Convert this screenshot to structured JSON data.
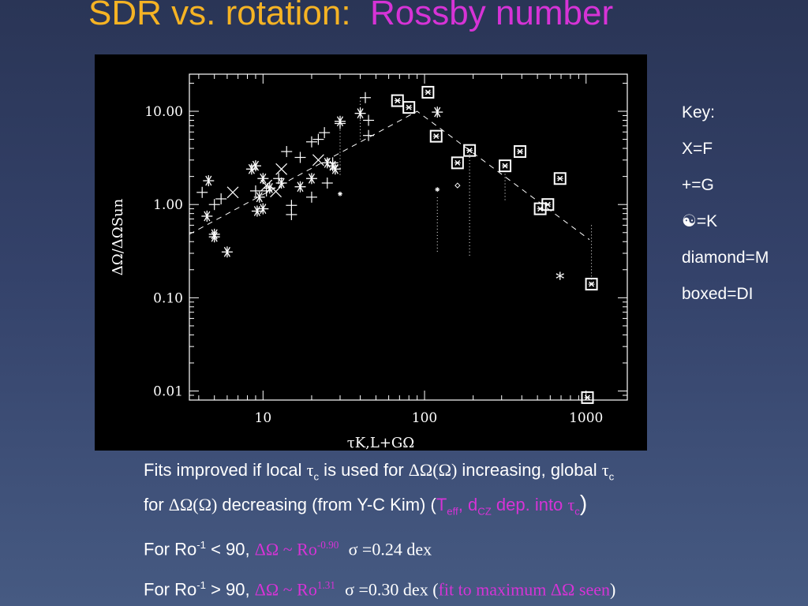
{
  "title": {
    "part1": "SDR vs. rotation:",
    "part2": "Rossby number"
  },
  "key": {
    "heading": "Key:",
    "items": [
      "X=F",
      "+=G",
      "☯=K",
      "diamond=M",
      "boxed=DI"
    ]
  },
  "notes": {
    "line1_a": "Fits improved if local ",
    "tau": "τ",
    "sub_c": "c",
    "line1_b": " is used for ",
    "domega": "ΔΩ(Ω)",
    "line1_c": " increasing, global ",
    "line2_a": "for ",
    "line2_b": " decreasing (from Y-C Kim) (",
    "teff": "T",
    "teff_sub": "eff",
    "dcz": ", d",
    "dcz_sub": "CZ",
    "dep": " dep. into ",
    "close": ")",
    "ro_low_a": "For Ro",
    "ro_sup": "-1",
    "ro_low_b": " < 90, ",
    "fit_low": "ΔΩ ~ Ro",
    "fit_low_exp": "-0.90",
    "sigma_low": "σ =0.24 dex",
    "ro_high_b": " > 90, ",
    "fit_high_exp": "1.31",
    "sigma_high": "σ =0.30 dex (",
    "fit_max": "fit to maximum ΔΩ seen",
    "paren_close": ")"
  },
  "colors": {
    "title1": "#f5b324",
    "title2": "#d633d6",
    "accent": "#d633d6"
  },
  "chart_data": {
    "type": "scatter",
    "xlabel": "τK,L+GΩ",
    "ylabel": "ΔΩ/ΔΩSun",
    "x_scale": "log",
    "y_scale": "log",
    "xlim": [
      3.5,
      1800
    ],
    "ylim": [
      0.008,
      25
    ],
    "x_ticks": [
      10,
      100,
      1000
    ],
    "x_tick_labels": [
      "10",
      "100",
      "1000"
    ],
    "y_ticks": [
      0.01,
      0.1,
      1,
      10
    ],
    "y_tick_labels": [
      "0.01",
      "0.10",
      "1.00",
      "10.00"
    ],
    "series": [
      {
        "marker": "asterisk",
        "points": [
          [
            4.6,
            1.8
          ],
          [
            4.5,
            0.75
          ],
          [
            5.0,
            0.48
          ],
          [
            5.0,
            0.45
          ],
          [
            6.0,
            0.31
          ],
          [
            8.5,
            2.4
          ],
          [
            9.0,
            2.6
          ],
          [
            9.2,
            0.85
          ],
          [
            9.5,
            1.2
          ],
          [
            10,
            1.9
          ],
          [
            10,
            0.9
          ],
          [
            11,
            1.5
          ],
          [
            13,
            1.7
          ],
          [
            17,
            1.55
          ],
          [
            20,
            1.9
          ],
          [
            25,
            2.8
          ],
          [
            27,
            2.6
          ],
          [
            28,
            2.4
          ],
          [
            30,
            7.8
          ],
          [
            40,
            9.5
          ],
          [
            120,
            9.8
          ]
        ]
      },
      {
        "marker": "plus",
        "points": [
          [
            4.2,
            1.35
          ],
          [
            5.0,
            1.0
          ],
          [
            5.5,
            1.15
          ],
          [
            9.0,
            1.4
          ],
          [
            10.5,
            1.4
          ],
          [
            12.5,
            1.9
          ],
          [
            14,
            3.7
          ],
          [
            15,
            0.98
          ],
          [
            15,
            0.78
          ],
          [
            17,
            3.2
          ],
          [
            20,
            1.2
          ],
          [
            20,
            4.7
          ],
          [
            22,
            5.0
          ],
          [
            24,
            5.9
          ],
          [
            25,
            1.7
          ],
          [
            27,
            2.8
          ],
          [
            30,
            7.4
          ],
          [
            43,
            14.0
          ],
          [
            45,
            8.0
          ],
          [
            45,
            5.5
          ]
        ]
      },
      {
        "marker": "x",
        "points": [
          [
            6.5,
            1.35
          ],
          [
            10.5,
            1.6
          ],
          [
            12,
            1.38
          ],
          [
            13,
            2.4
          ],
          [
            22,
            3.0
          ]
        ]
      },
      {
        "marker": "diamond",
        "points": [
          [
            160,
            1.6
          ]
        ]
      },
      {
        "marker": "star",
        "points": [
          [
            690,
            0.16
          ]
        ]
      },
      {
        "marker": "boxed",
        "points": [
          [
            68,
            13.0
          ],
          [
            80,
            11.0
          ],
          [
            105,
            16.0
          ],
          [
            118,
            5.4
          ],
          [
            160,
            2.8
          ],
          [
            190,
            3.8
          ],
          [
            315,
            2.6
          ],
          [
            390,
            3.7
          ],
          [
            520,
            0.9
          ],
          [
            580,
            1.0
          ],
          [
            690,
            1.9
          ],
          [
            1080,
            0.14
          ],
          [
            1020,
            0.0085
          ]
        ]
      },
      {
        "marker": "small-star",
        "points": [
          [
            120,
            1.45
          ],
          [
            30,
            1.3
          ]
        ]
      }
    ],
    "dotted_lines": [
      [
        [
          120,
          1.2
        ],
        [
          120,
          0.3
        ]
      ],
      [
        [
          190,
          3.5
        ],
        [
          190,
          0.28
        ]
      ],
      [
        [
          315,
          2.3
        ],
        [
          315,
          1.1
        ]
      ],
      [
        [
          1080,
          0.6
        ],
        [
          1080,
          0.14
        ]
      ],
      [
        [
          40,
          14
        ],
        [
          40,
          5
        ]
      ],
      [
        [
          30,
          8
        ],
        [
          30,
          2
        ]
      ]
    ],
    "fit_line": [
      [
        3.5,
        0.48
      ],
      [
        90,
        10.0
      ],
      [
        1050,
        0.42
      ]
    ]
  }
}
